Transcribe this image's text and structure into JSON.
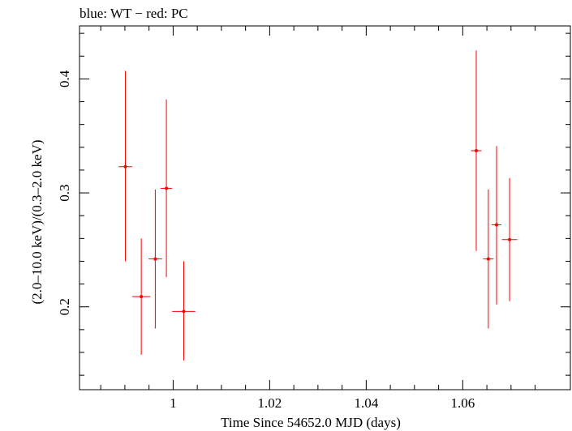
{
  "chart_data": {
    "type": "scatter",
    "title": "blue: WT − red: PC",
    "xlabel": "Time Since 54652.0 MJD (days)",
    "ylabel": "(2.0–10.0 keV)/(0.3–2.0 keV)",
    "xlim": [
      0.9806,
      1.0823
    ],
    "ylim": [
      0.1273,
      0.4465
    ],
    "grid": false,
    "x_ticks": [
      {
        "value": 1.0,
        "label": "1"
      },
      {
        "value": 1.02,
        "label": "1.02"
      },
      {
        "value": 1.04,
        "label": "1.04"
      },
      {
        "value": 1.06,
        "label": "1.06"
      }
    ],
    "y_ticks": [
      {
        "value": 0.2,
        "label": "0.2"
      },
      {
        "value": 0.3,
        "label": "0.3"
      },
      {
        "value": 0.4,
        "label": "0.4"
      }
    ],
    "series": [
      {
        "color": "#ff0000",
        "points": [
          {
            "x": 0.9901,
            "xerr": 0.0014,
            "y": 0.323,
            "ylo": 0.24,
            "yhi": 0.407
          },
          {
            "x": 0.9934,
            "xerr": 0.0019,
            "y": 0.209,
            "ylo": 0.158,
            "yhi": 0.26
          },
          {
            "x": 0.9963,
            "xerr": 0.0014,
            "y": 0.242,
            "ylo": 0.181,
            "yhi": 0.303
          },
          {
            "x": 0.9986,
            "xerr": 0.0012,
            "y": 0.304,
            "ylo": 0.226,
            "yhi": 0.382
          },
          {
            "x": 1.0022,
            "xerr": 0.0024,
            "y": 0.196,
            "ylo": 0.153,
            "yhi": 0.24
          },
          {
            "x": 1.0628,
            "xerr": 0.0011,
            "y": 0.337,
            "ylo": 0.249,
            "yhi": 0.425
          },
          {
            "x": 1.0653,
            "xerr": 0.0011,
            "y": 0.242,
            "ylo": 0.181,
            "yhi": 0.303
          },
          {
            "x": 1.067,
            "xerr": 0.001,
            "y": 0.272,
            "ylo": 0.202,
            "yhi": 0.341
          },
          {
            "x": 1.0697,
            "xerr": 0.0016,
            "y": 0.259,
            "ylo": 0.205,
            "yhi": 0.313
          }
        ]
      }
    ]
  }
}
